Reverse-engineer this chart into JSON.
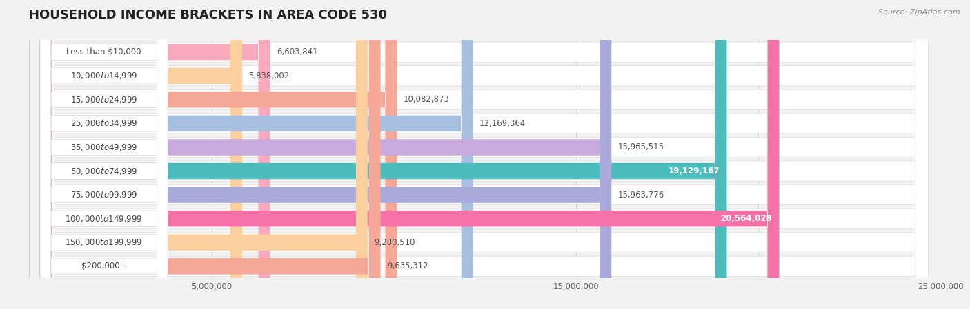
{
  "title": "HOUSEHOLD INCOME BRACKETS IN AREA CODE 530",
  "source": "Source: ZipAtlas.com",
  "categories": [
    "Less than $10,000",
    "$10,000 to $14,999",
    "$15,000 to $24,999",
    "$25,000 to $34,999",
    "$35,000 to $49,999",
    "$50,000 to $74,999",
    "$75,000 to $99,999",
    "$100,000 to $149,999",
    "$150,000 to $199,999",
    "$200,000+"
  ],
  "values": [
    6603841,
    5838002,
    10082873,
    12169364,
    15965515,
    19129167,
    15963776,
    20564028,
    9280510,
    9635312
  ],
  "bar_colors": [
    "#F9AABF",
    "#FCCF9E",
    "#F5A898",
    "#A8C0E0",
    "#C9AADC",
    "#4DBCBC",
    "#AAAADC",
    "#F472A8",
    "#FCCF9E",
    "#F5A898"
  ],
  "value_labels": [
    "6,603,841",
    "5,838,002",
    "10,082,873",
    "12,169,364",
    "15,965,515",
    "19,129,167",
    "15,963,776",
    "20,564,028",
    "9,280,510",
    "9,635,312"
  ],
  "label_inside": [
    false,
    false,
    false,
    false,
    false,
    true,
    false,
    true,
    false,
    false
  ],
  "xlim": [
    0,
    25000000
  ],
  "xticks": [
    5000000,
    15000000,
    25000000
  ],
  "xtick_labels": [
    "5,000,000",
    "15,000,000",
    "25,000,000"
  ],
  "background_color": "#f2f2f2",
  "row_bg_color": "#ffffff",
  "title_fontsize": 13,
  "label_fontsize": 8.5,
  "value_fontsize": 8.5,
  "source_fontsize": 8
}
